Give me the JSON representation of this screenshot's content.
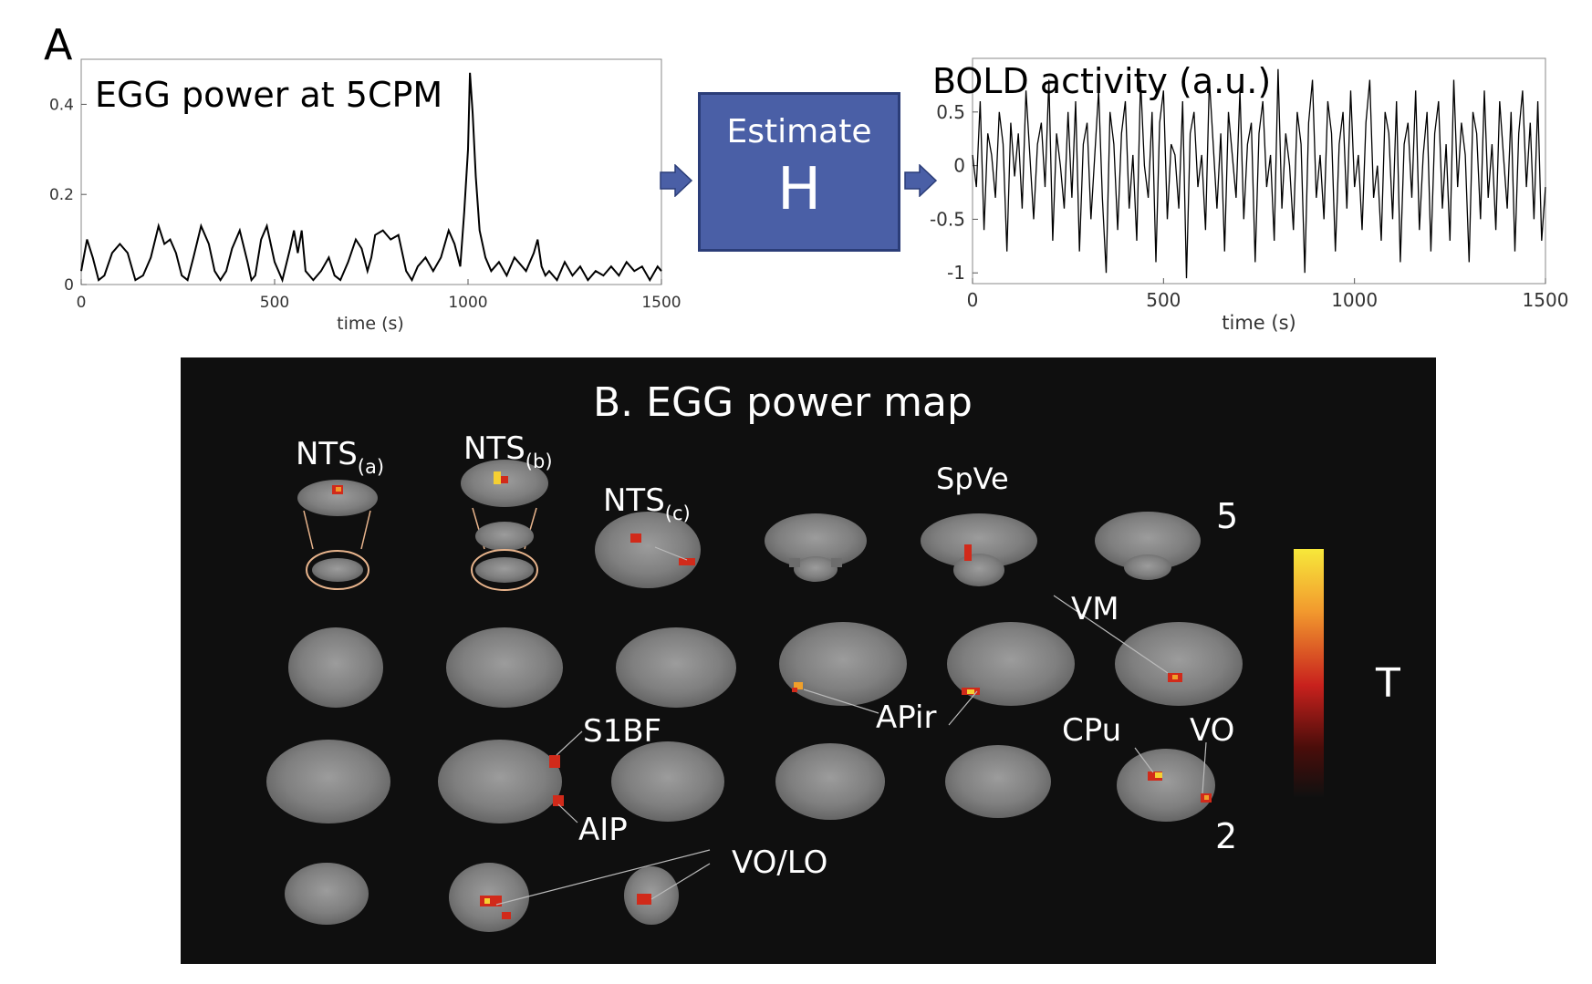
{
  "panel_a_letter": "A",
  "estimate": {
    "label": "Estimate",
    "symbol": "H"
  },
  "chart_data": [
    {
      "type": "line",
      "title": "EGG power at 5CPM",
      "xlabel": "time (s)",
      "ylabel": "",
      "xlim": [
        0,
        1500
      ],
      "ylim": [
        0,
        0.5
      ],
      "xticks": [
        0,
        500,
        1000,
        1500
      ],
      "yticks": [
        0,
        0.2,
        0.4
      ],
      "grid": false,
      "series": [
        {
          "x": [
            0,
            15,
            30,
            45,
            60,
            80,
            100,
            120,
            140,
            160,
            180,
            200,
            215,
            230,
            245,
            260,
            275,
            290,
            310,
            330,
            345,
            360,
            375,
            390,
            410,
            430,
            440,
            450,
            465,
            480,
            500,
            520,
            540,
            550,
            560,
            570,
            580,
            600,
            620,
            640,
            655,
            670,
            690,
            710,
            725,
            740,
            750,
            760,
            780,
            800,
            820,
            840,
            855,
            870,
            890,
            910,
            930,
            950,
            965,
            980,
            990,
            1000,
            1005,
            1012,
            1020,
            1030,
            1045,
            1060,
            1080,
            1100,
            1120,
            1150,
            1170,
            1180,
            1190,
            1200,
            1210,
            1230,
            1250,
            1270,
            1290,
            1310,
            1330,
            1350,
            1370,
            1390,
            1410,
            1430,
            1450,
            1470,
            1490,
            1500
          ],
          "y": [
            0.03,
            0.1,
            0.06,
            0.01,
            0.02,
            0.07,
            0.09,
            0.07,
            0.01,
            0.02,
            0.06,
            0.13,
            0.09,
            0.1,
            0.07,
            0.02,
            0.01,
            0.06,
            0.13,
            0.09,
            0.03,
            0.01,
            0.03,
            0.08,
            0.12,
            0.05,
            0.01,
            0.02,
            0.1,
            0.13,
            0.05,
            0.01,
            0.08,
            0.12,
            0.07,
            0.12,
            0.03,
            0.01,
            0.03,
            0.06,
            0.02,
            0.01,
            0.05,
            0.1,
            0.08,
            0.03,
            0.06,
            0.11,
            0.12,
            0.1,
            0.11,
            0.03,
            0.01,
            0.04,
            0.06,
            0.03,
            0.06,
            0.12,
            0.09,
            0.04,
            0.16,
            0.3,
            0.47,
            0.38,
            0.24,
            0.12,
            0.06,
            0.03,
            0.05,
            0.02,
            0.06,
            0.03,
            0.07,
            0.1,
            0.04,
            0.02,
            0.03,
            0.01,
            0.05,
            0.02,
            0.04,
            0.01,
            0.03,
            0.02,
            0.04,
            0.02,
            0.05,
            0.03,
            0.04,
            0.01,
            0.04,
            0.03
          ]
        }
      ]
    },
    {
      "type": "line",
      "title": "BOLD activity (a.u.)",
      "xlabel": "time (s)",
      "ylabel": "",
      "xlim": [
        0,
        1500
      ],
      "ylim": [
        -1.1,
        1.0
      ],
      "xticks": [
        0,
        500,
        1000,
        1500
      ],
      "yticks": [
        -1,
        -0.5,
        0,
        0.5
      ],
      "grid": false,
      "series": [
        {
          "x": [
            0,
            10,
            20,
            30,
            40,
            50,
            60,
            70,
            80,
            90,
            100,
            110,
            120,
            130,
            140,
            150,
            160,
            170,
            180,
            190,
            200,
            210,
            220,
            230,
            240,
            250,
            260,
            270,
            280,
            290,
            300,
            310,
            320,
            330,
            340,
            350,
            360,
            370,
            380,
            390,
            400,
            410,
            420,
            430,
            440,
            450,
            460,
            470,
            480,
            490,
            500,
            510,
            520,
            530,
            540,
            550,
            560,
            570,
            580,
            590,
            600,
            610,
            620,
            630,
            640,
            650,
            660,
            670,
            680,
            690,
            700,
            710,
            720,
            730,
            740,
            750,
            760,
            770,
            780,
            790,
            800,
            810,
            820,
            830,
            840,
            850,
            860,
            870,
            880,
            890,
            900,
            910,
            920,
            930,
            940,
            950,
            960,
            970,
            980,
            990,
            1000,
            1010,
            1020,
            1030,
            1040,
            1050,
            1060,
            1070,
            1080,
            1090,
            1100,
            1110,
            1120,
            1130,
            1140,
            1150,
            1160,
            1170,
            1180,
            1190,
            1200,
            1210,
            1220,
            1230,
            1240,
            1250,
            1260,
            1270,
            1280,
            1290,
            1300,
            1310,
            1320,
            1330,
            1340,
            1350,
            1360,
            1370,
            1380,
            1390,
            1400,
            1410,
            1420,
            1430,
            1440,
            1450,
            1460,
            1470,
            1480,
            1490,
            1500
          ],
          "y": [
            0.1,
            -0.2,
            0.6,
            -0.6,
            0.3,
            0.1,
            -0.3,
            0.5,
            0.2,
            -0.8,
            0.4,
            -0.1,
            0.3,
            -0.4,
            0.7,
            0.1,
            -0.5,
            0.2,
            0.4,
            -0.2,
            0.8,
            -0.7,
            0.3,
            0.0,
            -0.4,
            0.5,
            -0.3,
            0.6,
            -0.8,
            0.2,
            0.4,
            -0.5,
            0.1,
            0.7,
            -0.3,
            -1.0,
            0.5,
            0.2,
            -0.6,
            0.3,
            0.6,
            -0.4,
            0.1,
            -0.7,
            0.8,
            0.0,
            -0.3,
            0.5,
            -0.9,
            0.4,
            0.7,
            -0.5,
            0.2,
            0.1,
            -0.4,
            0.6,
            -1.05,
            0.3,
            0.5,
            -0.2,
            0.1,
            -0.6,
            0.8,
            0.2,
            -0.4,
            0.3,
            -0.8,
            0.5,
            0.1,
            -0.3,
            0.7,
            -0.5,
            0.2,
            0.4,
            -0.9,
            0.3,
            0.6,
            -0.2,
            0.1,
            -0.7,
            0.9,
            -0.4,
            0.3,
            0.0,
            -0.6,
            0.5,
            0.2,
            -1.0,
            0.4,
            0.8,
            -0.3,
            0.1,
            -0.5,
            0.6,
            0.3,
            -0.8,
            0.2,
            0.5,
            -0.4,
            0.7,
            -0.2,
            0.1,
            -0.6,
            0.4,
            0.8,
            -0.3,
            0.0,
            -0.7,
            0.5,
            0.3,
            -0.5,
            0.6,
            -0.9,
            0.2,
            0.4,
            -0.3,
            0.7,
            -0.6,
            0.1,
            0.5,
            -0.8,
            0.3,
            0.6,
            -0.4,
            0.2,
            -0.7,
            0.8,
            -0.2,
            0.4,
            0.1,
            -0.9,
            0.5,
            0.3,
            -0.5,
            0.7,
            -0.3,
            0.2,
            -0.6,
            0.6,
            0.1,
            -0.4,
            0.5,
            -0.8,
            0.3,
            0.7,
            -0.2,
            0.4,
            -0.5,
            0.6,
            -0.7,
            -0.2
          ]
        }
      ]
    }
  ],
  "panel_b": {
    "title": "B. EGG power map",
    "colorbar": {
      "max": "5",
      "min": "2",
      "label": "T"
    },
    "labels": {
      "nts_a": "NTS",
      "nts_a_sub": "(a)",
      "nts_b": "NTS",
      "nts_b_sub": "(b)",
      "nts_c": "NTS",
      "nts_c_sub": "(c)",
      "spve": "SpVe",
      "vm": "VM",
      "apir": "APir",
      "s1bf": "S1BF",
      "aip": "AIP",
      "cpu": "CPu",
      "vo": "VO",
      "volo": "VO/LO"
    }
  }
}
